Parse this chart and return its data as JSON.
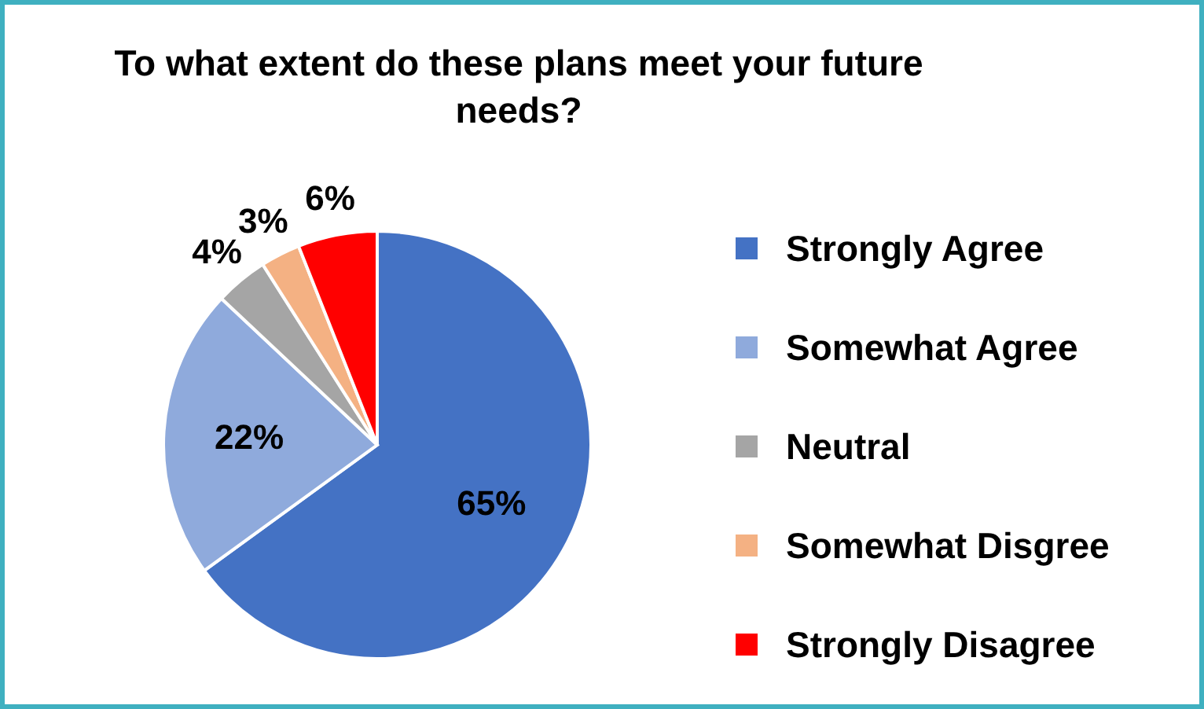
{
  "chart_data": {
    "type": "pie",
    "title": "To what extent do these plans meet your future needs?",
    "categories": [
      "Strongly Agree",
      "Somewhat Agree",
      "Neutral",
      "Somewhat Disgree",
      "Strongly Disagree"
    ],
    "values": [
      65,
      22,
      4,
      3,
      6
    ],
    "colors": [
      "#4472c4",
      "#8faadc",
      "#a5a5a5",
      "#f4b183",
      "#ff0000"
    ],
    "value_labels": [
      "65%",
      "22%",
      "4%",
      "3%",
      "6%"
    ],
    "legend": "right"
  }
}
